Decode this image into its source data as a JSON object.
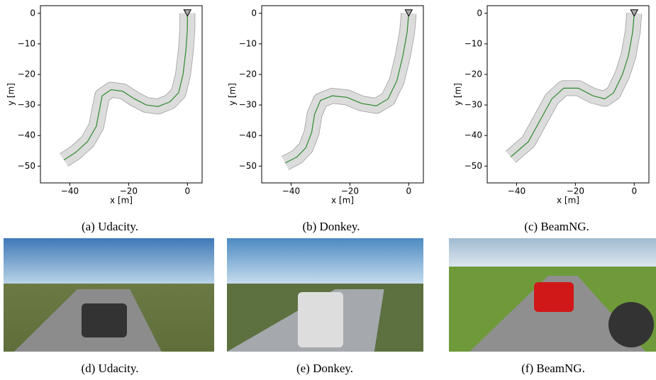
{
  "chart_data": [
    {
      "type": "line",
      "xlabel": "x [m]",
      "ylabel": "y [m]",
      "xlim": [
        -50,
        5
      ],
      "ylim": [
        -55.5,
        2.5
      ],
      "xticks": [
        {
          "value": -40,
          "label": "−40"
        },
        {
          "value": -20,
          "label": "−20"
        },
        0
      ],
      "yticks": [
        0,
        {
          "value": -10,
          "label": "−10"
        },
        {
          "value": -20,
          "label": "−20"
        },
        {
          "value": -30,
          "label": "−30"
        },
        {
          "value": -40,
          "label": "−40"
        },
        {
          "value": -50,
          "label": "−50"
        }
      ],
      "series": [
        {
          "color": "#2e8b2e",
          "x": [
            0,
            0,
            -0.5,
            -1.5,
            -3,
            -6,
            -10,
            -14,
            -18,
            -22,
            -26,
            -29,
            -30,
            -31,
            -34,
            -38,
            -42
          ],
          "y": [
            0,
            -5,
            -12,
            -20,
            -26,
            -29,
            -30.5,
            -30,
            -28,
            -25.5,
            -25,
            -27,
            -32,
            -37,
            -42,
            -45.5,
            -48
          ]
        }
      ],
      "caption": "(a) Udacity."
    },
    {
      "type": "line",
      "xlabel": "x [m]",
      "ylabel": "y [m]",
      "xlim": [
        -50,
        5
      ],
      "ylim": [
        -55.5,
        2.5
      ],
      "xticks": [
        {
          "value": -40,
          "label": "−40"
        },
        {
          "value": -20,
          "label": "−20"
        },
        0
      ],
      "yticks": [
        0,
        {
          "value": -10,
          "label": "−10"
        },
        {
          "value": -20,
          "label": "−20"
        },
        {
          "value": -30,
          "label": "−30"
        },
        {
          "value": -40,
          "label": "−40"
        },
        {
          "value": -50,
          "label": "−50"
        }
      ],
      "series": [
        {
          "color": "#2e8b2e",
          "x": [
            0,
            -0.5,
            -2,
            -4,
            -7,
            -11,
            -16,
            -21,
            -26,
            -30,
            -32,
            -33,
            -35,
            -38,
            -42
          ],
          "y": [
            0,
            -6,
            -14,
            -22,
            -28,
            -30.3,
            -29.5,
            -27.5,
            -27,
            -28.5,
            -33,
            -39,
            -44,
            -47,
            -49
          ]
        }
      ],
      "caption": "(b) Donkey."
    },
    {
      "type": "line",
      "xlabel": "x [m]",
      "ylabel": "y [m]",
      "xlim": [
        -50,
        5
      ],
      "ylim": [
        -55.5,
        2.5
      ],
      "xticks": [
        {
          "value": -40,
          "label": "−40"
        },
        {
          "value": -20,
          "label": "−20"
        },
        0
      ],
      "yticks": [
        0,
        {
          "value": -10,
          "label": "−10"
        },
        {
          "value": -20,
          "label": "−20"
        },
        {
          "value": -30,
          "label": "−30"
        },
        {
          "value": -40,
          "label": "−40"
        },
        {
          "value": -50,
          "label": "−50"
        }
      ],
      "series": [
        {
          "color": "#2e8b2e",
          "x": [
            0,
            -0.5,
            -2,
            -4,
            -7,
            -10,
            -14,
            -19,
            -24,
            -28,
            -32,
            -36,
            -42
          ],
          "y": [
            0,
            -6,
            -14,
            -20,
            -26,
            -28,
            -27,
            -24.5,
            -24.5,
            -28,
            -35,
            -42,
            -47
          ]
        }
      ],
      "caption": "(c) BeamNG."
    }
  ],
  "images": [
    {
      "caption": "(d) Udacity."
    },
    {
      "caption": "(e) Donkey."
    },
    {
      "caption": "(f) BeamNG."
    }
  ]
}
